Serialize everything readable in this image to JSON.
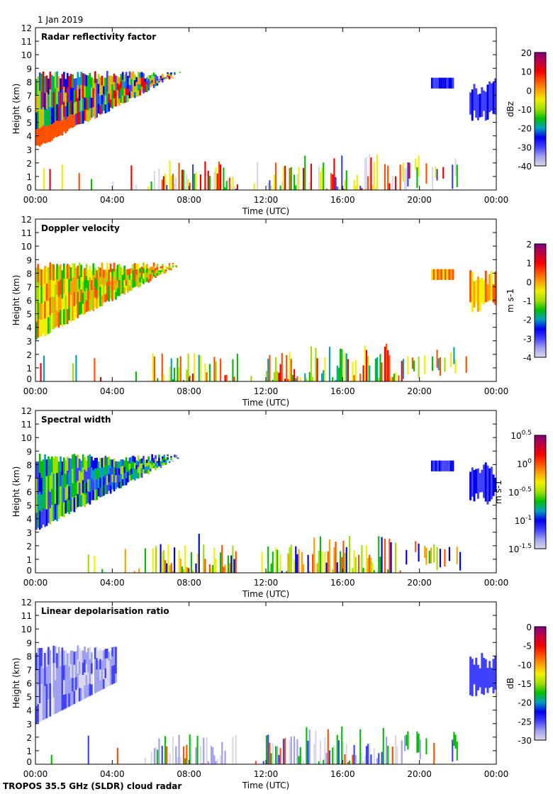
{
  "date_label": "1 Jan 2019",
  "footer": "TROPOS 35.5 GHz (SLDR) cloud radar",
  "colormap": [
    "#d8d8ea",
    "#a0a0f0",
    "#4040ff",
    "#0000f0",
    "#00a0c0",
    "#00c000",
    "#a0e000",
    "#f0f000",
    "#ffa000",
    "#ff5000",
    "#f00000",
    "#c00040",
    "#800080"
  ],
  "chart_data": [
    {
      "type": "heatmap",
      "title": "Radar reflectivity factor",
      "xlabel": "Time (UTC)",
      "ylabel": "Height (km)",
      "ylim": [
        0,
        12
      ],
      "xticks": [
        "00:00",
        "04:00",
        "08:00",
        "12:00",
        "16:00",
        "20:00",
        "00:00"
      ],
      "yticks": [
        "0",
        "1",
        "2",
        "3",
        "4",
        "5",
        "6",
        "7",
        "8",
        "9",
        "10",
        "11",
        "12"
      ],
      "colorbar": {
        "label": "dBz",
        "range": [
          -40,
          20
        ],
        "ticks": [
          "20",
          "10",
          "0",
          "-10",
          "-20",
          "-30",
          "-40"
        ]
      }
    },
    {
      "type": "heatmap",
      "title": "Doppler velocity",
      "xlabel": "Time (UTC)",
      "ylabel": "Height (km)",
      "ylim": [
        0,
        12
      ],
      "xticks": [
        "00:00",
        "04:00",
        "08:00",
        "12:00",
        "16:00",
        "20:00",
        "00:00"
      ],
      "yticks": [
        "0",
        "1",
        "2",
        "3",
        "4",
        "5",
        "6",
        "7",
        "8",
        "9",
        "10",
        "11",
        "12"
      ],
      "colorbar": {
        "label": "m s-1",
        "range": [
          -4,
          2
        ],
        "ticks": [
          "2",
          "1",
          "0",
          "-1",
          "-2",
          "-3",
          "-4"
        ]
      }
    },
    {
      "type": "heatmap",
      "title": "Spectral width",
      "xlabel": "Time (UTC)",
      "ylabel": "Height (km)",
      "ylim": [
        0,
        12
      ],
      "xticks": [
        "00:00",
        "04:00",
        "08:00",
        "12:00",
        "16:00",
        "20:00",
        "00:00"
      ],
      "yticks": [
        "0",
        "1",
        "2",
        "3",
        "4",
        "5",
        "6",
        "7",
        "8",
        "9",
        "10",
        "11",
        "12"
      ],
      "colorbar": {
        "label": "m s-1",
        "scale": "log",
        "range": [
          -1.5,
          0.5
        ],
        "ticks": [
          "10^0.5",
          "10^0",
          "10^-0.5",
          "10^-1",
          "10^-1.5"
        ]
      }
    },
    {
      "type": "heatmap",
      "title": "Linear depolarisation ratio",
      "xlabel": "Time (UTC)",
      "ylabel": "Height (km)",
      "ylim": [
        0,
        12
      ],
      "xticks": [
        "00:00",
        "04:00",
        "08:00",
        "12:00",
        "16:00",
        "20:00",
        "00:00"
      ],
      "yticks": [
        "0",
        "1",
        "2",
        "3",
        "4",
        "5",
        "6",
        "7",
        "8",
        "9",
        "10",
        "11",
        "12"
      ],
      "colorbar": {
        "label": "dB",
        "range": [
          -30,
          0
        ],
        "ticks": [
          "0",
          "-5",
          "-10",
          "-15",
          "-20",
          "-25",
          "-30"
        ]
      }
    }
  ]
}
